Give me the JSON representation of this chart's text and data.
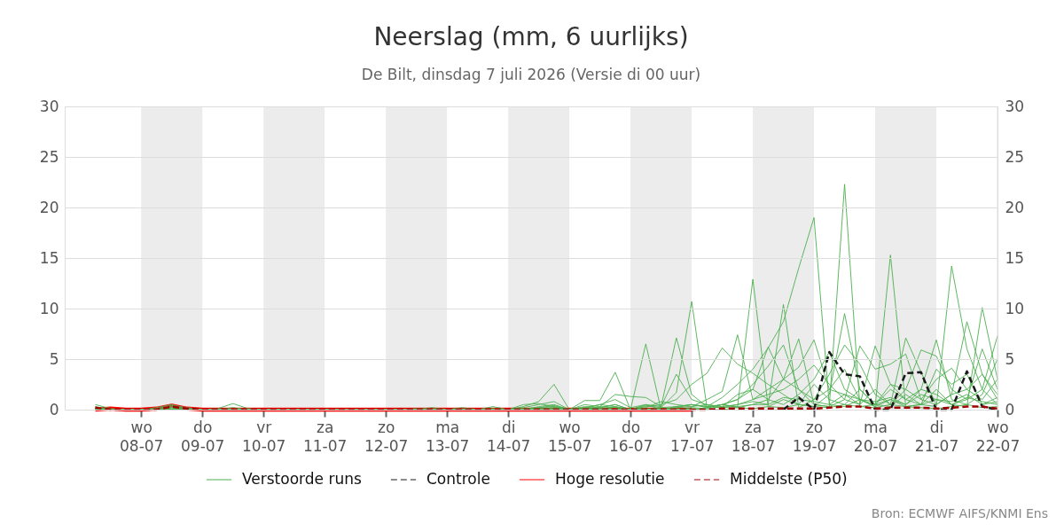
{
  "chart_data": {
    "type": "line",
    "title": "Neerslag (mm, 6 uurlijks)",
    "subtitle": "De Bilt, dinsdag  7 juli 2026 (Versie di 00 uur)",
    "annotations": [
      "Bron: ECMWF AIFS/KNMI Ens"
    ],
    "x": [
      "2026-07-07T06:00",
      "2026-07-07T12:00",
      "2026-07-07T18:00",
      "2026-07-08T00:00",
      "2026-07-08T06:00",
      "2026-07-08T12:00",
      "2026-07-08T18:00",
      "2026-07-09T00:00",
      "2026-07-09T06:00",
      "2026-07-09T12:00",
      "2026-07-09T18:00",
      "2026-07-10T00:00",
      "2026-07-10T06:00",
      "2026-07-10T12:00",
      "2026-07-10T18:00",
      "2026-07-11T00:00",
      "2026-07-11T06:00",
      "2026-07-11T12:00",
      "2026-07-11T18:00",
      "2026-07-12T00:00",
      "2026-07-12T06:00",
      "2026-07-12T12:00",
      "2026-07-12T18:00",
      "2026-07-13T00:00",
      "2026-07-13T06:00",
      "2026-07-13T12:00",
      "2026-07-13T18:00",
      "2026-07-14T00:00",
      "2026-07-14T06:00",
      "2026-07-14T12:00",
      "2026-07-14T18:00",
      "2026-07-15T00:00",
      "2026-07-15T06:00",
      "2026-07-15T12:00",
      "2026-07-15T18:00",
      "2026-07-16T00:00",
      "2026-07-16T06:00",
      "2026-07-16T12:00",
      "2026-07-16T18:00",
      "2026-07-17T00:00",
      "2026-07-17T06:00",
      "2026-07-17T12:00",
      "2026-07-17T18:00",
      "2026-07-18T00:00",
      "2026-07-18T06:00",
      "2026-07-18T12:00",
      "2026-07-18T18:00",
      "2026-07-19T00:00",
      "2026-07-19T06:00",
      "2026-07-19T12:00",
      "2026-07-19T18:00",
      "2026-07-20T00:00",
      "2026-07-20T06:00",
      "2026-07-20T12:00",
      "2026-07-20T18:00",
      "2026-07-21T00:00",
      "2026-07-21T06:00",
      "2026-07-21T12:00",
      "2026-07-21T18:00",
      "2026-07-22T00:00"
    ],
    "xlim": [
      "2026-07-06T18:00",
      "2026-07-22T00:00"
    ],
    "xticks": [
      {
        "value": "2026-07-08",
        "label": "wo\n08-07"
      },
      {
        "value": "2026-07-09",
        "label": "do\n09-07"
      },
      {
        "value": "2026-07-10",
        "label": "vr\n10-07"
      },
      {
        "value": "2026-07-11",
        "label": "za\n11-07"
      },
      {
        "value": "2026-07-12",
        "label": "zo\n12-07"
      },
      {
        "value": "2026-07-13",
        "label": "ma\n13-07"
      },
      {
        "value": "2026-07-14",
        "label": "di\n14-07"
      },
      {
        "value": "2026-07-15",
        "label": "wo\n15-07"
      },
      {
        "value": "2026-07-16",
        "label": "do\n16-07"
      },
      {
        "value": "2026-07-17",
        "label": "vr\n17-07"
      },
      {
        "value": "2026-07-18",
        "label": "za\n18-07"
      },
      {
        "value": "2026-07-19",
        "label": "zo\n19-07"
      },
      {
        "value": "2026-07-20",
        "label": "ma\n20-07"
      },
      {
        "value": "2026-07-21",
        "label": "di\n21-07"
      },
      {
        "value": "2026-07-22",
        "label": "wo\n22-07"
      }
    ],
    "ylim": [
      0,
      30
    ],
    "yticks": [
      0,
      5,
      10,
      15,
      20,
      25,
      30
    ],
    "y2lim": [
      0,
      30
    ],
    "y2ticks": [
      0,
      5,
      10,
      15,
      20,
      25,
      30
    ],
    "grid": "y",
    "legend": "bottom",
    "bands": [
      {
        "axis": "x",
        "from": "2026-07-08",
        "to": "2026-07-09",
        "color": "#ececec"
      },
      {
        "axis": "x",
        "from": "2026-07-10",
        "to": "2026-07-11",
        "color": "#ececec"
      },
      {
        "axis": "x",
        "from": "2026-07-12",
        "to": "2026-07-13",
        "color": "#ececec"
      },
      {
        "axis": "x",
        "from": "2026-07-14",
        "to": "2026-07-15",
        "color": "#ececec"
      },
      {
        "axis": "x",
        "from": "2026-07-16",
        "to": "2026-07-17",
        "color": "#ececec"
      },
      {
        "axis": "x",
        "from": "2026-07-18",
        "to": "2026-07-19",
        "color": "#ececec"
      },
      {
        "axis": "x",
        "from": "2026-07-20",
        "to": "2026-07-21",
        "color": "#ececec"
      }
    ],
    "series": [
      {
        "name": "Verstoorde runs",
        "color": "#4caf50",
        "line_style": "solid",
        "values": [
          0.5,
          0.1,
          0,
          0,
          0.1,
          0.4,
          0.2,
          0,
          0,
          0,
          0,
          0,
          0,
          0,
          0,
          0,
          0,
          0,
          0,
          0,
          0,
          0,
          0.2,
          0,
          0,
          0,
          0.1,
          0,
          0.3,
          0.8,
          2.5,
          0,
          0.2,
          0.5,
          0.3,
          0,
          0.4,
          0.2,
          1.7,
          10.7,
          0.2,
          0.5,
          1.0,
          2.0,
          1.0,
          3.0,
          2.0,
          0.5,
          0.3,
          22.3,
          0.3,
          0.5,
          2.5,
          2.0,
          1.0,
          0.5,
          1.5,
          2.0,
          3.5,
          1.5
        ]
      },
      {
        "color": "#4caf50",
        "line_style": "solid",
        "values": [
          0.3,
          0,
          0,
          0,
          0.2,
          0.5,
          0.1,
          0,
          0.1,
          0.6,
          0.1,
          0,
          0,
          0,
          0,
          0,
          0,
          0,
          0,
          0,
          0,
          0,
          0,
          0,
          0.2,
          0,
          0,
          0,
          0.5,
          0.6,
          0.3,
          0,
          0.9,
          0.9,
          3.7,
          0,
          0.5,
          0,
          0.3,
          0.5,
          0.3,
          1.2,
          2.5,
          4.0,
          6.1,
          8.7,
          14.0,
          19.0,
          0.5,
          0.3,
          1.0,
          0.3,
          15.3,
          0.3,
          0.5,
          1.0,
          0.5,
          1.2,
          0.8,
          0.5
        ]
      },
      {
        "color": "#4caf50",
        "line_style": "solid",
        "values": [
          0.2,
          0,
          0,
          0,
          0,
          0.3,
          0.1,
          0,
          0,
          0.2,
          0,
          0,
          0,
          0,
          0,
          0,
          0,
          0,
          0,
          0,
          0,
          0.1,
          0,
          0,
          0,
          0,
          0.3,
          0,
          0.2,
          0.5,
          0.8,
          0,
          0.3,
          0.2,
          0.5,
          0,
          6.5,
          0,
          0.2,
          0.3,
          0.5,
          0.2,
          0.3,
          12.9,
          0.3,
          1.0,
          0.5,
          2.5,
          1.0,
          0.5,
          2.0,
          0.5,
          0.3,
          1.5,
          0.5,
          0.3,
          14.2,
          6.0,
          2.0,
          0.5
        ]
      },
      {
        "color": "#4caf50",
        "line_style": "solid",
        "values": [
          0.1,
          0,
          0,
          0,
          0,
          0.2,
          0,
          0,
          0,
          0,
          0,
          0,
          0,
          0,
          0,
          0,
          0,
          0,
          0,
          0,
          0,
          0,
          0,
          0,
          0,
          0,
          0,
          0,
          0,
          0.3,
          0.5,
          0,
          0.5,
          0.3,
          1.5,
          1.3,
          1.2,
          0.3,
          7.1,
          1.5,
          0.3,
          0.5,
          0.2,
          0.5,
          0.5,
          10.4,
          0.2,
          1.0,
          2.0,
          4.0,
          1.0,
          0.3,
          1.0,
          0.5,
          2.0,
          1.5,
          0.5,
          0.3,
          10.1,
          3.0
        ]
      },
      {
        "color": "#4caf50",
        "line_style": "solid",
        "values": [
          0.1,
          0,
          0,
          0,
          0,
          0.2,
          0,
          0,
          0,
          0,
          0,
          0,
          0,
          0,
          0,
          0,
          0,
          0,
          0,
          0,
          0,
          0,
          0,
          0,
          0,
          0,
          0,
          0,
          0.1,
          0.2,
          0.3,
          0,
          0,
          0.3,
          0.2,
          0,
          0.3,
          0.5,
          1.0,
          2.5,
          3.6,
          6.1,
          4.5,
          3.6,
          2.5,
          1.5,
          0.5,
          0.3,
          1.5,
          9.5,
          2.0,
          0.5,
          1.0,
          0.3,
          0.5,
          2.0,
          0.5,
          1.0,
          2.0,
          7.3
        ]
      },
      {
        "color": "#4caf50",
        "line_style": "solid",
        "values": [
          0,
          0,
          0,
          0,
          0,
          0,
          0,
          0,
          0,
          0,
          0,
          0,
          0,
          0,
          0,
          0,
          0,
          0,
          0,
          0,
          0,
          0,
          0,
          0,
          0,
          0,
          0,
          0,
          0,
          0,
          0.2,
          0,
          0.2,
          0.1,
          0.3,
          0,
          0.2,
          0.8,
          0.5,
          0.3,
          1.0,
          1.8,
          7.4,
          1.0,
          2.0,
          3.0,
          7.0,
          0.5,
          0.3,
          1.0,
          0.5,
          2.0,
          0.5,
          7.1,
          3.7,
          0.5,
          1.5,
          8.7,
          3.5,
          1.0
        ]
      },
      {
        "color": "#4caf50",
        "line_style": "solid",
        "values": [
          0.1,
          0,
          0,
          0,
          0,
          0.2,
          0,
          0,
          0,
          0,
          0,
          0,
          0,
          0,
          0,
          0,
          0,
          0,
          0,
          0,
          0,
          0,
          0,
          0,
          0,
          0,
          0,
          0,
          0,
          0.2,
          0.4,
          0,
          0.1,
          0.5,
          1.0,
          0.2,
          0.5,
          0.3,
          3.5,
          1.0,
          0.5,
          0.3,
          1.5,
          2.0,
          6.2,
          3.0,
          4.2,
          6.9,
          2.0,
          1.5,
          0.5,
          6.3,
          2.5,
          1.0,
          2.0,
          6.9,
          1.0,
          0.5,
          1.5,
          5.0
        ]
      },
      {
        "color": "#4caf50",
        "line_style": "solid",
        "values": [
          0,
          0,
          0,
          0,
          0,
          0,
          0,
          0,
          0,
          0,
          0,
          0,
          0,
          0,
          0,
          0,
          0,
          0,
          0,
          0,
          0,
          0,
          0,
          0,
          0,
          0,
          0,
          0,
          0,
          0,
          0,
          0,
          0,
          0.2,
          0.5,
          0,
          0,
          0.2,
          0.3,
          0.5,
          0.2,
          0.5,
          1.0,
          2.5,
          4.3,
          6.4,
          2.0,
          1.0,
          3.5,
          6.4,
          4.5,
          1.5,
          0.5,
          2.0,
          5.9,
          5.3,
          2.0,
          1.0,
          6.0,
          2.0
        ]
      },
      {
        "color": "#4caf50",
        "line_style": "solid",
        "values": [
          0,
          0,
          0,
          0,
          0,
          0,
          0,
          0,
          0,
          0,
          0,
          0,
          0,
          0,
          0,
          0,
          0,
          0,
          0,
          0,
          0,
          0,
          0,
          0,
          0,
          0,
          0,
          0,
          0,
          0,
          0.1,
          0,
          0,
          0,
          0.2,
          0,
          0.1,
          0,
          0.2,
          0.5,
          0.3,
          0.2,
          0.5,
          1.0,
          1.5,
          2.0,
          3.0,
          4.4,
          2.5,
          1.0,
          6.3,
          4.0,
          4.5,
          5.5,
          1.0,
          3.0,
          4.1,
          2.0,
          1.0,
          3.0
        ]
      },
      {
        "color": "#4caf50",
        "line_style": "solid",
        "values": [
          0.1,
          0,
          0,
          0,
          0,
          0.2,
          0,
          0,
          0,
          0,
          0,
          0,
          0,
          0,
          0,
          0,
          0,
          0,
          0,
          0,
          0,
          0,
          0,
          0,
          0,
          0,
          0,
          0,
          0,
          0.1,
          0.2,
          0,
          0,
          0.1,
          0,
          0,
          0,
          0.1,
          0,
          0.2,
          0.1,
          0.3,
          0.5,
          0.8,
          0.5,
          1.2,
          1.0,
          0.8,
          0.5,
          1.5,
          1.0,
          0.8,
          1.2,
          0.5,
          1.5,
          1.0,
          0.8,
          1.5,
          0.5,
          1.2
        ]
      },
      {
        "color": "#4caf50",
        "line_style": "solid",
        "values": [
          0,
          0,
          0,
          0,
          0,
          0,
          0,
          0,
          0,
          0,
          0,
          0,
          0,
          0,
          0,
          0,
          0,
          0,
          0,
          0,
          0,
          0,
          0,
          0,
          0,
          0,
          0,
          0,
          0,
          0,
          0,
          0,
          0,
          0,
          0,
          0,
          0,
          0,
          0.1,
          0,
          0.2,
          0.5,
          0.3,
          0.5,
          1.0,
          0.5,
          1.5,
          3.0,
          5.7,
          2.0,
          1.0,
          0.5,
          2.0,
          1.0,
          0.5,
          4.0,
          2.5,
          3.5,
          0.5,
          0.8
        ]
      },
      {
        "color": "#4caf50",
        "line_style": "solid",
        "values": [
          0,
          0,
          0,
          0,
          0,
          0,
          0,
          0,
          0,
          0,
          0,
          0,
          0,
          0,
          0,
          0,
          0,
          0,
          0,
          0,
          0,
          0,
          0,
          0,
          0,
          0,
          0,
          0,
          0,
          0,
          0,
          0,
          0,
          0,
          0,
          0,
          0,
          0,
          0,
          0.1,
          0,
          0,
          0.2,
          0.1,
          0.3,
          0.2,
          0.5,
          0.3,
          0.2,
          0.5,
          0.3,
          0.2,
          0.5,
          0.3,
          0.2,
          0.1,
          0.3,
          0.5,
          0.2,
          0.3
        ]
      },
      {
        "name": "Controle",
        "color": "#1a1a1a",
        "line_style": "dashed",
        "values": [
          null,
          null,
          null,
          null,
          null,
          null,
          null,
          null,
          null,
          null,
          null,
          null,
          null,
          null,
          null,
          null,
          null,
          null,
          null,
          null,
          null,
          null,
          null,
          null,
          null,
          null,
          null,
          null,
          null,
          null,
          null,
          null,
          null,
          null,
          null,
          null,
          null,
          null,
          null,
          null,
          null,
          null,
          null,
          null,
          null,
          0,
          1.2,
          0,
          5.7,
          3.5,
          3.3,
          0,
          0,
          3.6,
          3.7,
          0,
          0,
          3.8,
          0.3,
          0
        ]
      },
      {
        "name": "Hoge resolutie",
        "color": "#ff0000",
        "line_style": "solid",
        "values": [
          0,
          0.1,
          0,
          0,
          0.1,
          0.4,
          0.1,
          0,
          0,
          0,
          0,
          0,
          0,
          0,
          0,
          0,
          0,
          0,
          0,
          0,
          0,
          0,
          0,
          0,
          0,
          0,
          0,
          0,
          0,
          0,
          0,
          0,
          0,
          0,
          0,
          0,
          0,
          0,
          0,
          0,
          null,
          null,
          null,
          null,
          null,
          null,
          null,
          null,
          null,
          null,
          null,
          null,
          null,
          null,
          null,
          null,
          null,
          null,
          null,
          null
        ]
      },
      {
        "name": "Middelste (P50)",
        "color": "#a00000",
        "line_style": "dashed",
        "values": [
          0.2,
          0,
          0,
          0,
          0,
          0.3,
          0.1,
          0,
          0,
          0,
          0,
          0,
          0,
          0,
          0,
          0,
          0,
          0,
          0,
          0,
          0,
          0,
          0,
          0,
          0,
          0,
          0,
          0,
          0,
          0,
          0,
          0,
          0,
          0,
          0,
          0,
          0,
          0,
          0,
          0,
          0,
          0.1,
          0.1,
          0.1,
          0.1,
          0.1,
          0.1,
          0.1,
          0.2,
          0.3,
          0.3,
          0.1,
          0.2,
          0.2,
          0.2,
          0.1,
          0.2,
          0.3,
          0.3,
          0.1
        ]
      }
    ]
  }
}
